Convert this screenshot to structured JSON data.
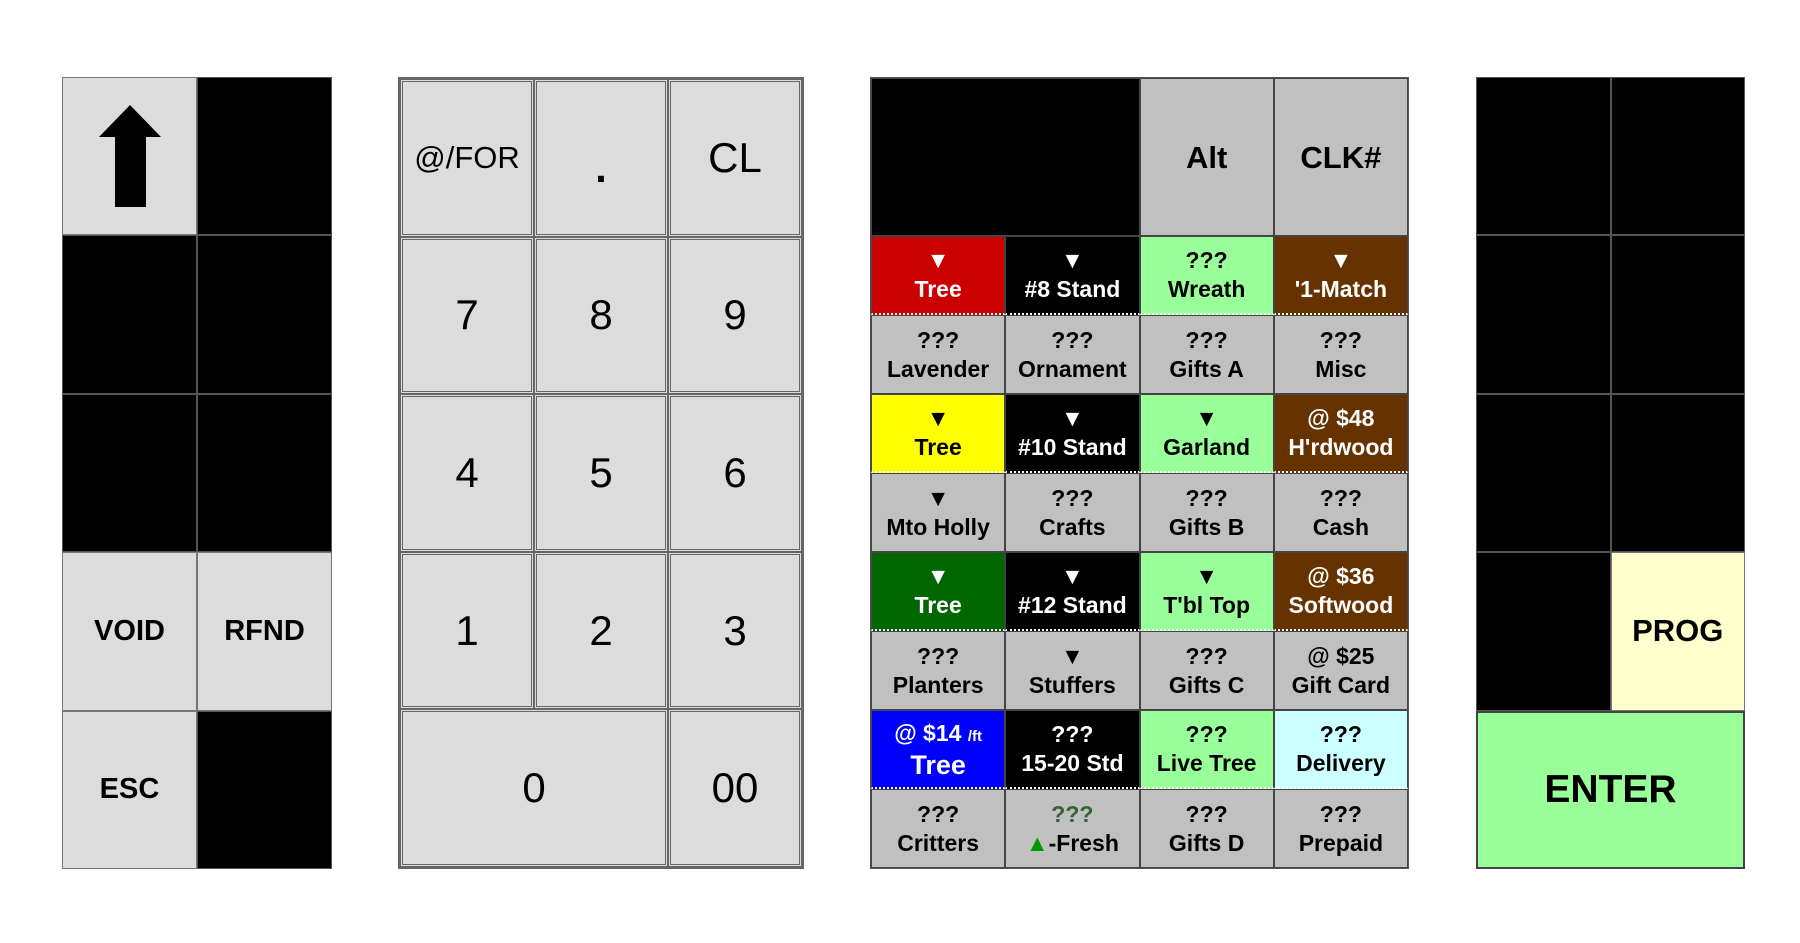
{
  "left_panel": {
    "shift_icon": "up-arrow-icon",
    "void_label": "VOID",
    "refund_label": "RFND",
    "esc_label": "ESC"
  },
  "numpad": {
    "at_for": "@/FOR",
    "decimal": ".",
    "clear": "CL",
    "keys": [
      "7",
      "8",
      "9",
      "4",
      "5",
      "6",
      "1",
      "2",
      "3"
    ],
    "zero": "0",
    "double_zero": "00"
  },
  "grid": {
    "alt_label": "Alt",
    "clerk_label": "CLK#",
    "cells": [
      {
        "l1": "▼",
        "l2": "Tree",
        "bg": "#cc0000",
        "fg": "#ffffff",
        "dot": true
      },
      {
        "l1": "▼",
        "l2": "#8 Stand",
        "bg": "#000000",
        "fg": "#ffffff",
        "dot": true
      },
      {
        "l1": "???",
        "l2": "Wreath",
        "bg": "#99ff99",
        "fg": "#000000",
        "dot": true
      },
      {
        "l1": "▼",
        "l2": "'1-Match",
        "bg": "#663300",
        "fg": "#ffffff",
        "dot": true
      },
      {
        "l1": "???",
        "l2": "Lavender",
        "bg": "#c0c0c0",
        "fg": "#000000"
      },
      {
        "l1": "???",
        "l2": "Ornament",
        "bg": "#c0c0c0",
        "fg": "#000000"
      },
      {
        "l1": "???",
        "l2": "Gifts A",
        "bg": "#c0c0c0",
        "fg": "#000000"
      },
      {
        "l1": "???",
        "l2": "Misc",
        "bg": "#c0c0c0",
        "fg": "#000000"
      },
      {
        "l1": "▼",
        "l2": "Tree",
        "bg": "#ffff00",
        "fg": "#000000",
        "dot": true
      },
      {
        "l1": "▼",
        "l2": "#10 Stand",
        "bg": "#000000",
        "fg": "#ffffff",
        "dot": true
      },
      {
        "l1": "▼",
        "l2": "Garland",
        "bg": "#99ff99",
        "fg": "#000000",
        "dot": true
      },
      {
        "l1": "@ $48",
        "l2": "H'rdwood",
        "bg": "#663300",
        "fg": "#ffffff",
        "dot": true
      },
      {
        "l1": "▼",
        "l2": "Mto Holly",
        "bg": "#c0c0c0",
        "fg": "#000000"
      },
      {
        "l1": "???",
        "l2": "Crafts",
        "bg": "#c0c0c0",
        "fg": "#000000"
      },
      {
        "l1": "???",
        "l2": "Gifts B",
        "bg": "#c0c0c0",
        "fg": "#000000"
      },
      {
        "l1": "???",
        "l2": "Cash",
        "bg": "#c0c0c0",
        "fg": "#000000"
      },
      {
        "l1": "▼",
        "l2": "Tree",
        "bg": "#006600",
        "fg": "#ffffff",
        "dot": true
      },
      {
        "l1": "▼",
        "l2": "#12 Stand",
        "bg": "#000000",
        "fg": "#ffffff",
        "dot": true
      },
      {
        "l1": "▼",
        "l2": "T'bl Top",
        "bg": "#99ff99",
        "fg": "#000000",
        "dot": true
      },
      {
        "l1": "@ $36",
        "l2": "Softwood",
        "bg": "#663300",
        "fg": "#ffffff",
        "dot": true
      },
      {
        "l1": "???",
        "l2": "Planters",
        "bg": "#c0c0c0",
        "fg": "#000000"
      },
      {
        "l1": "▼",
        "l2": "Stuffers",
        "bg": "#c0c0c0",
        "fg": "#000000"
      },
      {
        "l1": "???",
        "l2": "Gifts C",
        "bg": "#c0c0c0",
        "fg": "#000000"
      },
      {
        "l1": "@ $25",
        "l2": "Gift Card",
        "bg": "#c0c0c0",
        "fg": "#000000"
      },
      {
        "l1": "@ $14",
        "l1_suffix": "/ft",
        "l2": "Tree",
        "bg": "#0000ff",
        "fg": "#ffffff",
        "dot": true,
        "big": true
      },
      {
        "l1": "???",
        "l2": "15-20 Std",
        "bg": "#000000",
        "fg": "#ffffff",
        "dot": true
      },
      {
        "l1": "???",
        "l2": "Live Tree",
        "bg": "#99ff99",
        "fg": "#000000",
        "dot": true
      },
      {
        "l1": "???",
        "l2": "Delivery",
        "bg": "#ccffff",
        "fg": "#000000",
        "dot": true
      },
      {
        "l1": "???",
        "l2": "Critters",
        "bg": "#c0c0c0",
        "fg": "#000000"
      },
      {
        "l1": "???",
        "l1_color": "#336633",
        "l2_prefix": "▲",
        "l2_prefix_color": "#009900",
        "l2": "-Fresh",
        "bg": "#c0c0c0",
        "fg": "#000000"
      },
      {
        "l1": "???",
        "l2": "Gifts D",
        "bg": "#c0c0c0",
        "fg": "#000000"
      },
      {
        "l1": "???",
        "l2": "Prepaid",
        "bg": "#c0c0c0",
        "fg": "#000000"
      }
    ]
  },
  "right_panel": {
    "prog_label": "PROG",
    "enter_label": "ENTER"
  }
}
